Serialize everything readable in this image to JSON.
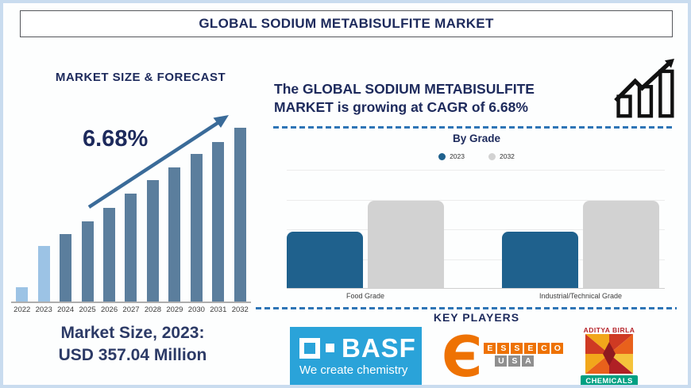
{
  "title": "GLOBAL SODIUM METABISULFITE MARKET",
  "left": {
    "market_size_line1": "Market Size, 2023:",
    "market_size_line2": "USD 357.04 Million"
  },
  "right": {
    "growth_line1": "The GLOBAL SODIUM METABISULFITE",
    "growth_line2": "MARKET is growing at CAGR of 6.68%",
    "growth_icon": "growth-bar-chart-icon",
    "key_players_title": "KEY PLAYERS",
    "players": [
      {
        "name": "BASF",
        "tagline": "We create chemistry",
        "brand_color": "#2aa3d9"
      },
      {
        "name": "ESSECO USA",
        "word1": "ESSECO",
        "word2": "USA",
        "brand_color": "#ee7203",
        "word2_color": "#8f8f8f"
      },
      {
        "name": "ADITYA BIRLA",
        "band": "CHEMICALS",
        "text_color": "#b5232a",
        "band_color": "#00a082"
      }
    ]
  },
  "colors": {
    "navy": "#1d2a5c",
    "forecast_bar": "#5b7e9d",
    "forecast_highlight": "#9cc3e5",
    "trend_arrow": "#3a6b99",
    "grade_2023": "#1f618d",
    "grade_2032": "#d2d2d2",
    "dashed_divider": "#2e75b6"
  },
  "chart_data": [
    {
      "type": "bar",
      "title": "MARKET SIZE & FORECAST",
      "categories": [
        "2022",
        "2023",
        "2024",
        "2025",
        "2026",
        "2027",
        "2028",
        "2029",
        "2030",
        "2031",
        "2032"
      ],
      "values_relative": [
        0.08,
        0.32,
        0.39,
        0.46,
        0.54,
        0.62,
        0.7,
        0.77,
        0.85,
        0.92,
        1.0
      ],
      "annotation": "6.68%",
      "known_value": {
        "year": "2023",
        "value": 357.04,
        "unit": "USD Million"
      },
      "bar_color": "#5b7e9d",
      "highlight_color": "#9cc3e5",
      "highlight_years": [
        "2022",
        "2023"
      ],
      "trend_arrow": true,
      "y_axis_labels": false
    },
    {
      "type": "bar",
      "title": "By Grade",
      "categories": [
        "Food Grade",
        "Industrial/Technical Grade"
      ],
      "series": [
        {
          "name": "2023",
          "color": "#1f618d",
          "values_relative": [
            0.47,
            0.47
          ]
        },
        {
          "name": "2032",
          "color": "#d2d2d2",
          "values_relative": [
            0.73,
            0.73
          ]
        }
      ],
      "legend_position": "top",
      "grid": true,
      "y_axis_labels": false
    }
  ]
}
